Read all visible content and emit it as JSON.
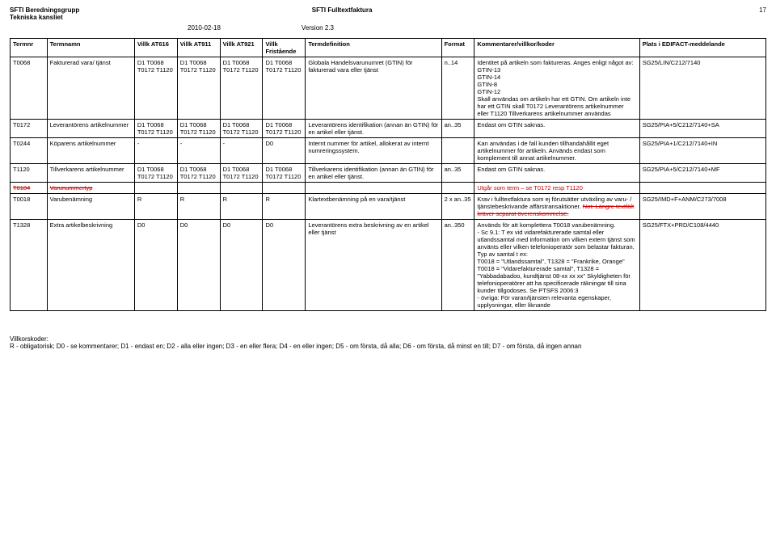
{
  "header": {
    "org": "SFTI Beredningsgrupp",
    "org2": "Tekniska kansliet",
    "title": "SFTI Fulltextfaktura",
    "page": "17",
    "date": "2010-02-18",
    "version": "Version 2.3"
  },
  "columns": {
    "termnr": "Termnr",
    "termnamn": "Termnamn",
    "v616": "Villk AT616",
    "v911": "Villk AT911",
    "v921": "Villk AT921",
    "vfri": "Villk Fristående",
    "def": "Termdefinition",
    "fmt": "Format",
    "komm": "Kommentarer/villkor/koder",
    "plats": "Plats i EDIFACT-meddelande"
  },
  "rows": [
    {
      "termnr": "T0068",
      "termnamn": "Fakturerad vara/ tjänst",
      "v616": "D1 T0068 T0172 T1120",
      "v911": "D1 T0068 T0172 T1120",
      "v921": "D1 T0068 T0172 T1120",
      "vfri": "D1 T0068 T0172 T1120",
      "def": "Globala Handelsvarunumret (GTIN) för fakturerad vara eller tjänst",
      "fmt": "n..14",
      "komm": "Identitet på artikeln som faktureras. Anges enligt något av:\nGTIN-13\nGTIN-14\nGTIN-8\nGTIN-12\nSkall användas om artikeln har ett GTIN. Om artikeln inte har ett GTIN skall T0172 Leverantörens artikelnummer eller T1120 Tillverkarens artikelnummer användas",
      "plats": "SG25/LIN/C212/7140"
    },
    {
      "termnr": "T0172",
      "termnamn": "Leverantörens artikel­nummer",
      "v616": "D1 T0068 T0172 T1120",
      "v911": "D1 T0068 T0172 T1120",
      "v921": "D1 T0068 T0172 T1120",
      "vfri": "D1 T0068 T0172 T1120",
      "def": "Leverantörens identifikation (annan än GTIN) för en artikel eller tjänst.",
      "fmt": "an..35",
      "komm": "Endast om GTIN saknas.",
      "plats": "SG25/PIA+5/C212/7140+SA"
    },
    {
      "termnr": "T0244",
      "termnamn": "Köparens artikelnummer",
      "v616": "-",
      "v911": "-",
      "v921": "-",
      "vfri": "D0",
      "def": "Internt nummer för artikel, allokerat av internt numreringssystem.",
      "fmt": "",
      "komm": "Kan användas i de fall kunden tillhandahållit eget artikelnummer för artikeln. Används endast som komplement till annat artikelnummer.",
      "plats": "SG25/PIA+1/C212/7140+IN"
    },
    {
      "termnr": "T1120",
      "termnamn": "Tillverkarens artikel­nummer",
      "v616": "D1 T0068 T0172 T1120",
      "v911": "D1 T0068 T0172 T1120",
      "v921": "D1 T0068 T0172 T1120",
      "vfri": "D1 T0068 T0172 T1120",
      "def": "Tillverkarens identifikation (annan än GTIN) för en artikel eller tjänst.",
      "fmt": "an..35",
      "komm": "Endast om GTIN saknas.",
      "plats": "SG25/PIA+5/C212/7140+MF"
    },
    {
      "termnr": "T0184",
      "termnamn": "Varunummertyp",
      "strike": true,
      "v616": "",
      "v911": "",
      "v921": "",
      "vfri": "",
      "def": "",
      "fmt": "",
      "komm": "Utgår som term – se T0172 resp T1120",
      "plats": ""
    },
    {
      "termnr": "T0018",
      "termnamn": "Varubenämning",
      "v616": "R",
      "v911": "R",
      "v921": "R",
      "vfri": "R",
      "def": "Klartextbenämning på en vara/tjänst",
      "fmt": "2 x an..35",
      "komm_pre": "Krav i fulltextfaktura som ej förutsätter utväxling av varu- / tjänstebeskrivande affärstransaktioner. ",
      "komm_strike": "Not: Längre textfält kräver separat överenskommelse.",
      "plats": "SG25/IMD+F+ANM/C273/7008"
    },
    {
      "termnr": "T1328",
      "termnamn": "Extra artikelbeskriv­ning",
      "v616": "D0",
      "v911": "D0",
      "v921": "D0",
      "vfri": "D0",
      "def": "Leverantörens extra beskrivning av en artikel eller tjänst",
      "fmt": "an..350",
      "komm": "Används för att komplettera T0018 varubenämning.\n- Sc 9.1: T ex vid vidarefakturerade samtal eller utlandssamtal med information om vilken extern tjänst som använts eller vilken telefonioperatör som belastar fakturan. Typ av samtal t ex:\nT0018 = \"Utlandssamtal\", T1328 = \"Frankrike, Orange\"\nT0018 = \"Vidarefakturerade samtal\", T1328 = \"Yabbadabadoo, kundtjänst 08-xx xx xx\" Skyldigheten för telefonioperatörer att ha specificerade räkningar till sina kunder tillgodoses. Se PTSFS 2006:3\n- övriga: För varan/tjänsten relevanta egenskaper, upplysningar, eller liknande",
      "plats": "SG25/FTX+PRD/C108/4440"
    }
  ],
  "footer": {
    "title": "Villkorskoder:",
    "text": "R - obligatorisk; D0 - se kommentarer; D1 - endast en; D2 - alla eller ingen; D3 - en eller flera; D4 - en eller ingen; D5 - om första, då alla; D6 - om första, då minst en till; D7 - om första, då ingen annan"
  }
}
